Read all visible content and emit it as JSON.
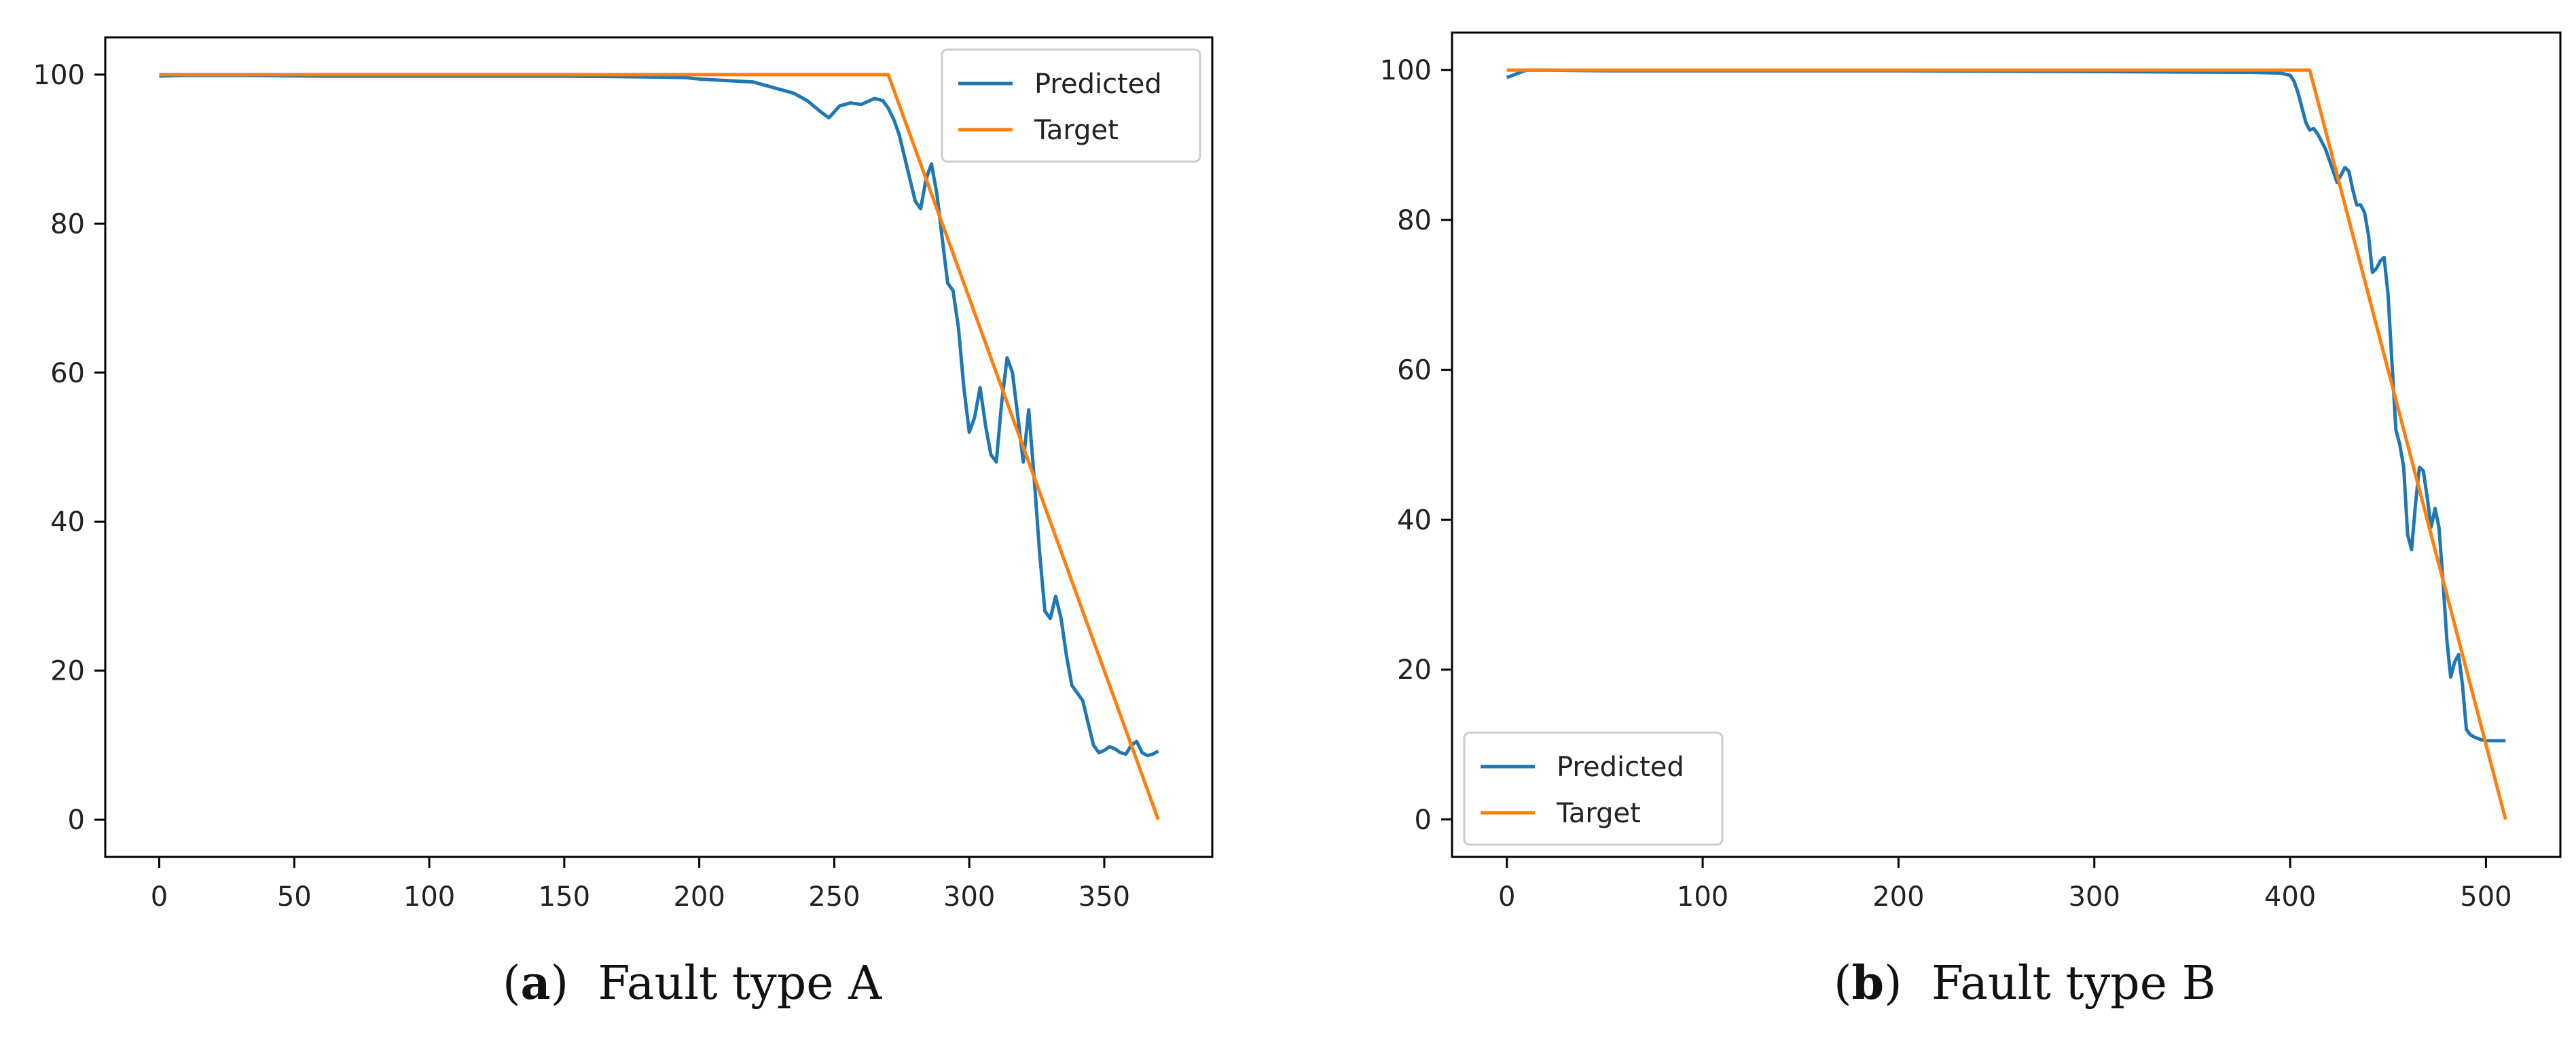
{
  "captions": [
    {
      "open": "(",
      "letter": "a",
      "close": ")",
      "text": "Fault type A"
    },
    {
      "open": "(",
      "letter": "b",
      "close": ")",
      "text": "Fault type B"
    }
  ],
  "colors": {
    "predicted": "#1f77b4",
    "target": "#ff7f0e",
    "axis": "#000000",
    "text": "#222222"
  },
  "chart_data": [
    {
      "type": "line",
      "title": "",
      "xlabel": "",
      "ylabel": "",
      "xlim": [
        -20,
        390
      ],
      "ylim": [
        -5,
        105
      ],
      "xticks": [
        0,
        50,
        100,
        150,
        200,
        250,
        300,
        350
      ],
      "yticks": [
        0,
        20,
        40,
        60,
        80,
        100
      ],
      "legend_position": "top-right",
      "series": [
        {
          "name": "Predicted",
          "color": "#1f77b4",
          "x": [
            0,
            10,
            30,
            60,
            100,
            150,
            180,
            195,
            200,
            210,
            220,
            225,
            230,
            235,
            240,
            245,
            248,
            252,
            256,
            260,
            265,
            268,
            270,
            272,
            274,
            276,
            278,
            280,
            282,
            284,
            286,
            288,
            290,
            292,
            294,
            296,
            298,
            300,
            302,
            304,
            306,
            308,
            310,
            312,
            314,
            316,
            318,
            320,
            322,
            324,
            326,
            328,
            330,
            332,
            334,
            336,
            338,
            340,
            342,
            344,
            346,
            348,
            350,
            352,
            354,
            356,
            358,
            360,
            362,
            364,
            366,
            368,
            370
          ],
          "y": [
            99.8,
            99.9,
            99.9,
            99.8,
            99.8,
            99.8,
            99.7,
            99.6,
            99.4,
            99.2,
            99.0,
            98.5,
            98.0,
            97.5,
            96.5,
            95.0,
            94.2,
            95.8,
            96.2,
            96.0,
            96.8,
            96.5,
            95.5,
            94.0,
            92.0,
            89.0,
            86.0,
            83.0,
            82.0,
            86.0,
            88.0,
            84.0,
            78.0,
            72.0,
            71.0,
            66.0,
            58.0,
            52.0,
            54.0,
            58.0,
            53.0,
            49.0,
            48.0,
            56.0,
            62.0,
            60.0,
            54.0,
            48.0,
            55.0,
            46.0,
            36.0,
            28.0,
            27.0,
            30.0,
            27.0,
            22.0,
            18.0,
            17.0,
            16.0,
            13.0,
            10.0,
            9.0,
            9.3,
            9.8,
            9.5,
            9.0,
            8.8,
            10.0,
            10.5,
            9.0,
            8.6,
            8.8,
            9.2
          ]
        },
        {
          "name": "Target",
          "color": "#ff7f0e",
          "x": [
            0,
            270,
            370
          ],
          "y": [
            100,
            100,
            0
          ]
        }
      ]
    },
    {
      "type": "line",
      "title": "",
      "xlabel": "",
      "ylabel": "",
      "xlim": [
        -28,
        538
      ],
      "ylim": [
        -5,
        105
      ],
      "xticks": [
        0,
        100,
        200,
        300,
        400,
        500
      ],
      "yticks": [
        0,
        20,
        40,
        60,
        80,
        100
      ],
      "legend_position": "bottom-left",
      "series": [
        {
          "name": "Predicted",
          "color": "#1f77b4",
          "x": [
            0,
            5,
            10,
            20,
            50,
            100,
            200,
            300,
            380,
            395,
            400,
            402,
            404,
            406,
            408,
            410,
            412,
            414,
            416,
            418,
            420,
            422,
            424,
            426,
            428,
            430,
            432,
            434,
            436,
            438,
            440,
            442,
            444,
            446,
            448,
            450,
            452,
            454,
            456,
            458,
            460,
            462,
            464,
            466,
            468,
            470,
            472,
            474,
            476,
            478,
            480,
            482,
            484,
            486,
            488,
            490,
            492,
            494,
            496,
            498,
            500,
            502,
            504,
            506,
            508,
            510
          ],
          "y": [
            99.0,
            99.5,
            100.0,
            100.0,
            99.9,
            99.9,
            99.9,
            99.8,
            99.7,
            99.6,
            99.3,
            98.5,
            97.0,
            95.0,
            93.0,
            92.0,
            92.2,
            91.5,
            90.5,
            89.5,
            88.0,
            86.5,
            85.0,
            86.0,
            87.0,
            86.5,
            84.0,
            82.0,
            82.0,
            81.0,
            78.0,
            73.0,
            73.5,
            74.5,
            75.0,
            70.0,
            61.0,
            52.0,
            50.0,
            47.0,
            38.0,
            36.0,
            42.0,
            47.0,
            46.5,
            43.0,
            39.0,
            41.5,
            39.0,
            32.0,
            24.0,
            19.0,
            21.0,
            22.0,
            18.0,
            12.0,
            11.3,
            11.0,
            10.8,
            10.6,
            10.5,
            10.5,
            10.5,
            10.5,
            10.5,
            10.5
          ]
        },
        {
          "name": "Target",
          "color": "#ff7f0e",
          "x": [
            0,
            410,
            510
          ],
          "y": [
            100,
            100,
            0
          ]
        }
      ]
    }
  ]
}
